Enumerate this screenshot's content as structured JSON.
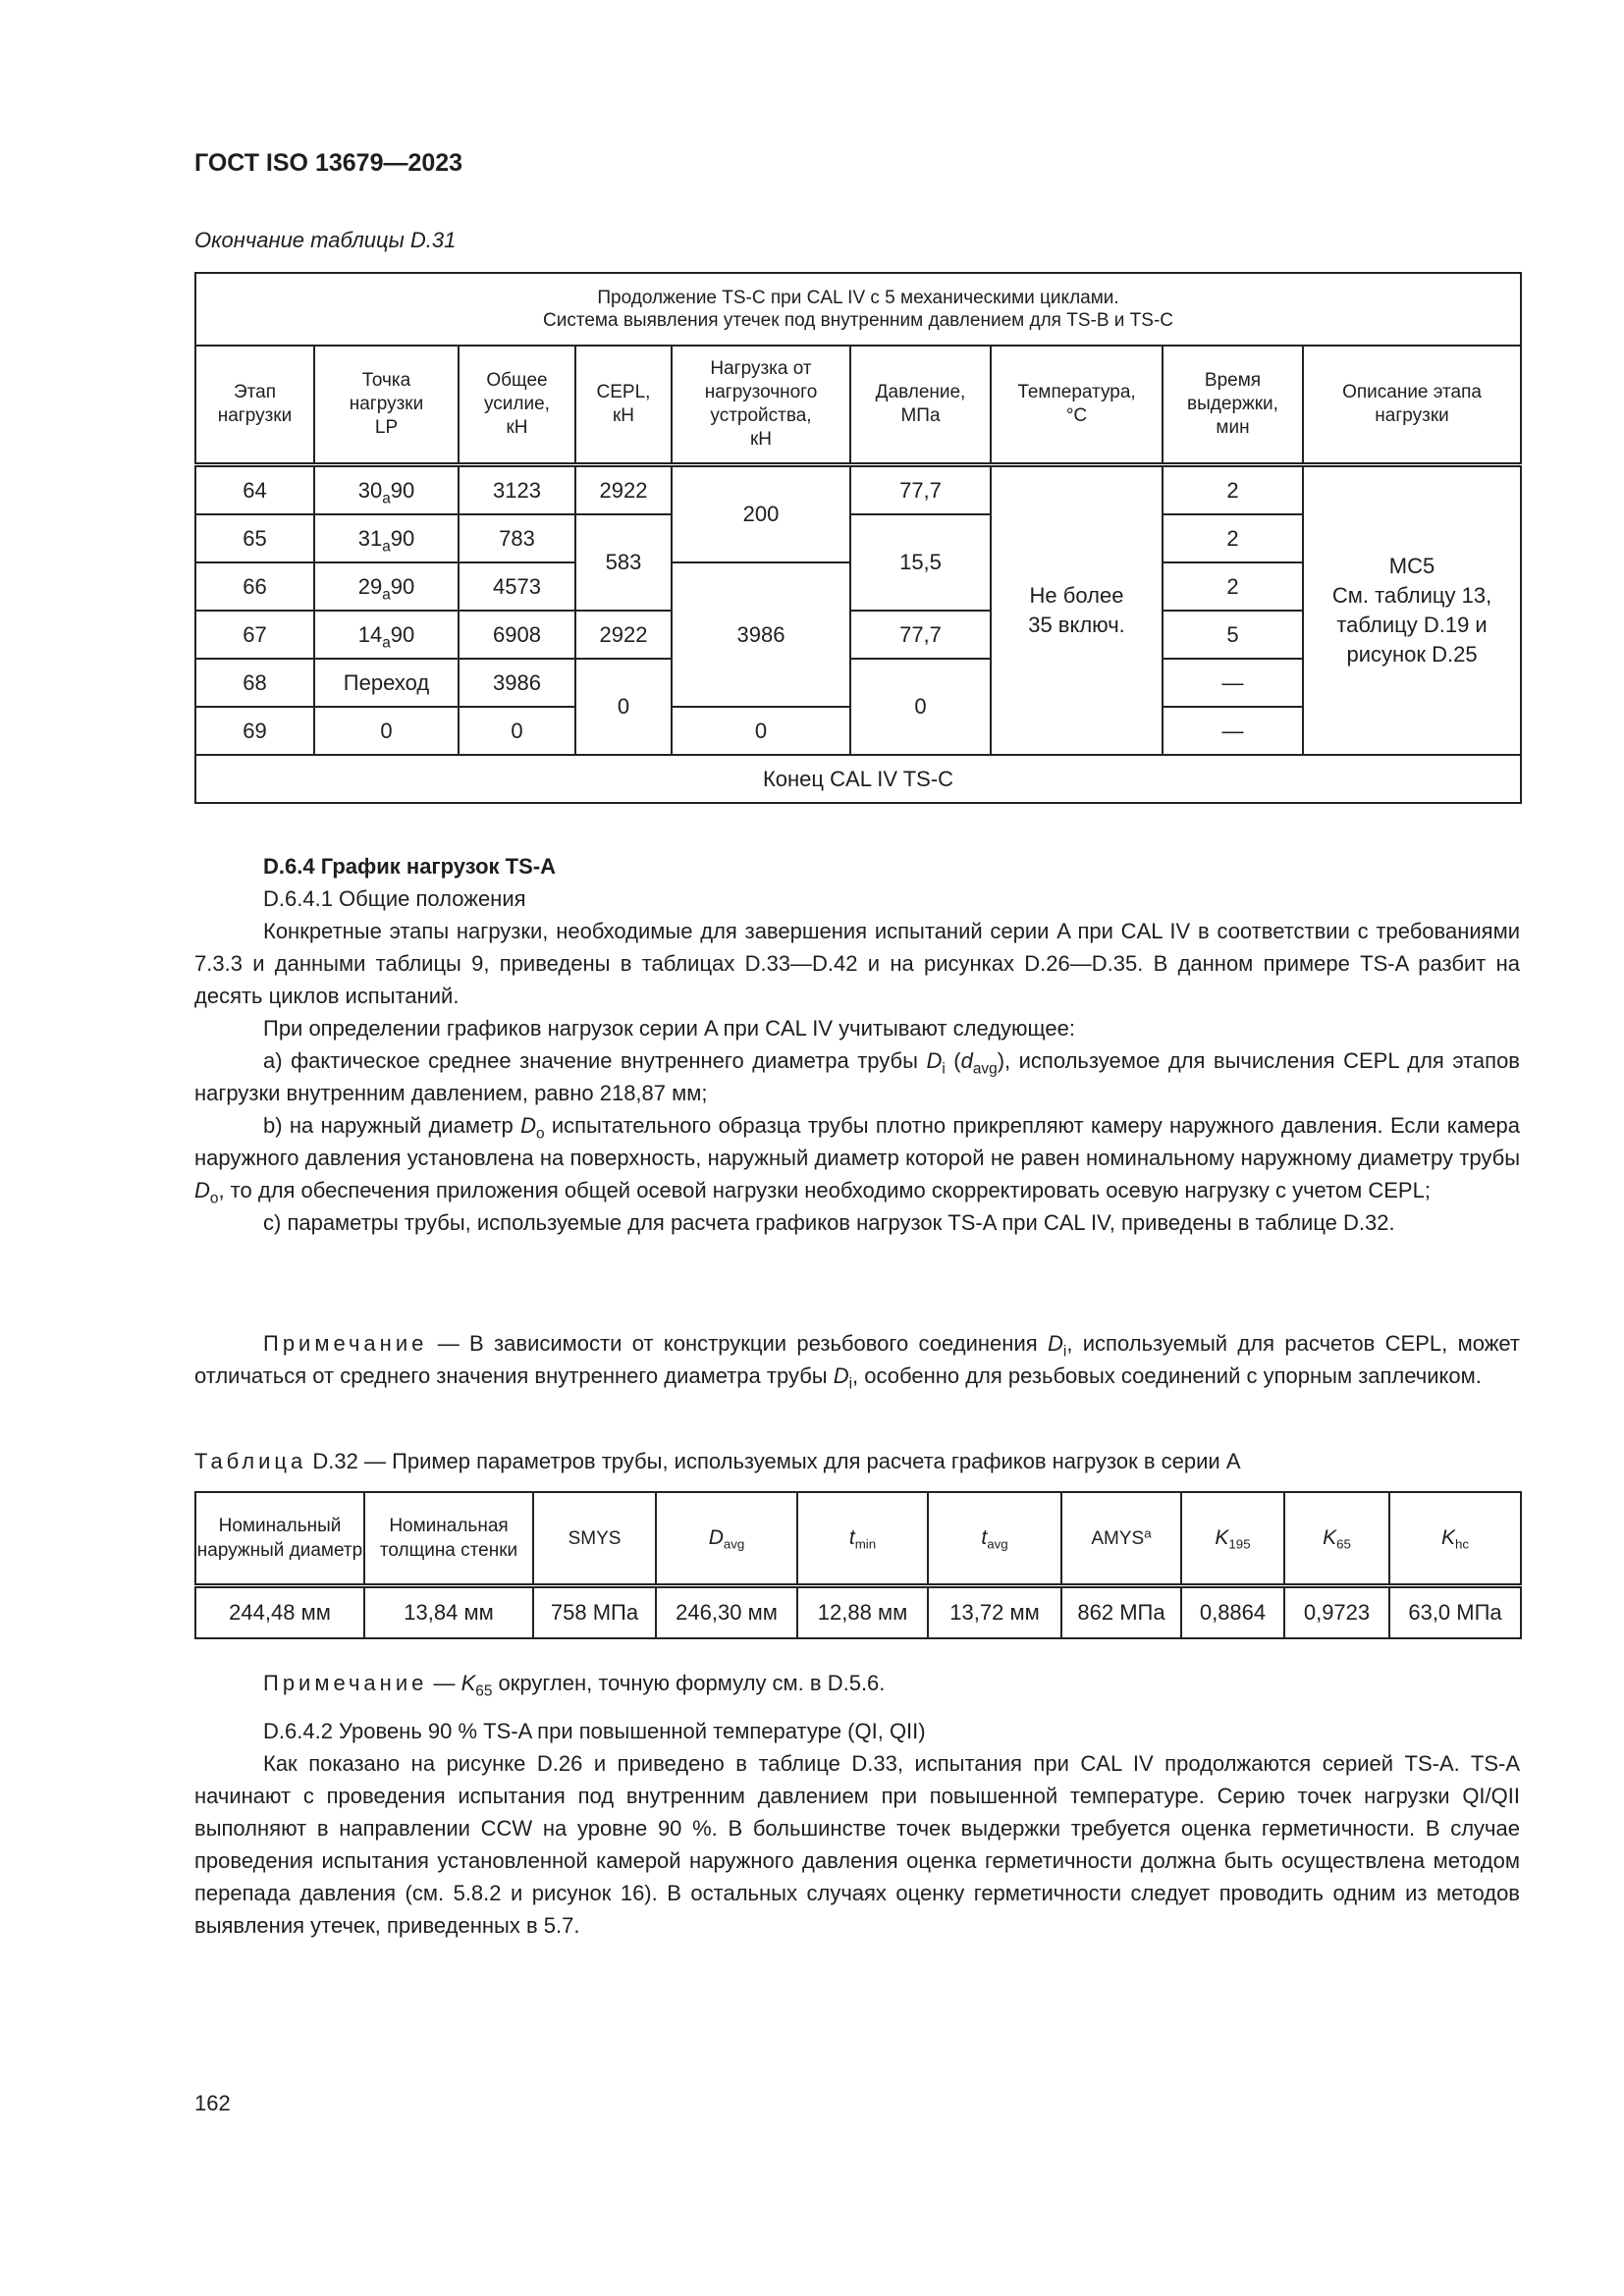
{
  "header": {
    "doc_id": "ГОСТ ISO 13679—2023",
    "continuation": "Окончание таблицы D.31"
  },
  "table1": {
    "title_lines": [
      "Продолжение TS-C при CAL IV с 5 механическими циклами.",
      "Система выявления утечек под внутренним давлением для TS-B и TS-C"
    ],
    "columns": [
      [
        "Этап",
        "нагрузки"
      ],
      [
        "Точка",
        "нагрузки",
        "LP"
      ],
      [
        "Общее",
        "усилие,",
        "кН"
      ],
      [
        "CEPL,",
        "кН"
      ],
      [
        "Нагрузка от",
        "нагрузочного",
        "устройства,",
        "кН"
      ],
      [
        "Давление,",
        "МПа"
      ],
      [
        "Температура,",
        "°C"
      ],
      [
        "Время",
        "выдержки,",
        "мин"
      ],
      [
        "Описание этапа",
        "нагрузки"
      ]
    ],
    "rows": [
      {
        "stage": "64",
        "lp": {
          "pre": "30",
          "sub": "a",
          "post": "90"
        },
        "force": "3123",
        "cepl": "2922",
        "device": "200",
        "pressure": "77,7",
        "temperature": "Не более 35 включ.",
        "hold": "2",
        "description": [
          "MC5",
          "См. таблицу 13,",
          "таблицу D.19 и",
          "рисунок D.25"
        ]
      },
      {
        "stage": "65",
        "lp": {
          "pre": "31",
          "sub": "a",
          "post": "90"
        },
        "force": "783",
        "cepl": "583",
        "pressure": "15,5",
        "hold": "2"
      },
      {
        "stage": "66",
        "lp": {
          "pre": "29",
          "sub": "a",
          "post": "90"
        },
        "force": "4573",
        "device": "3986",
        "hold": "2"
      },
      {
        "stage": "67",
        "lp": {
          "pre": "14",
          "sub": "a",
          "post": "90"
        },
        "force": "6908",
        "cepl": "2922",
        "pressure": "77,7",
        "hold": "5"
      },
      {
        "stage": "68",
        "lp": {
          "pre": "Переход"
        },
        "force": "3986",
        "cepl": "0",
        "pressure": "0",
        "hold": "—"
      },
      {
        "stage": "69",
        "lp": {
          "pre": "0"
        },
        "force": "0",
        "device": "0",
        "hold": "—"
      }
    ],
    "footer": "Конец CAL IV TS-C"
  },
  "section1": [
    {
      "cls": "h",
      "seg": [
        {
          "t": "D.6.4 График нагрузок TS-A"
        }
      ]
    },
    {
      "seg": [
        {
          "t": "D.6.4.1 Общие положения"
        }
      ]
    },
    {
      "seg": [
        {
          "t": "Конкретные этапы нагрузки, необходимые для завершения испытаний серии A при CAL IV в соответствии с требованиями 7.3.3 и данными таблицы 9, приведены в таблицах D.33—D.42 и на рисунках D.26—D.35. В данном примере TS-A разбит на десять циклов испытаний."
        }
      ]
    },
    {
      "seg": [
        {
          "t": "При определении графиков нагрузок серии A при CAL IV учитывают следующее:"
        }
      ]
    },
    {
      "seg": [
        {
          "t": "а) фактическое среднее значение внутреннего диаметра трубы "
        },
        {
          "t": "D",
          "s": "i"
        },
        {
          "t": "i",
          "s": "sub"
        },
        {
          "t": " ("
        },
        {
          "t": "d",
          "s": "i"
        },
        {
          "t": "avg",
          "s": "sub"
        },
        {
          "t": "), используемое для вычисления CEPL для этапов нагрузки внутренним давлением, равно 218,87 мм;"
        }
      ]
    },
    {
      "seg": [
        {
          "t": "b) на наружный диаметр "
        },
        {
          "t": "D",
          "s": "i"
        },
        {
          "t": "o",
          "s": "sub"
        },
        {
          "t": " испытательного образца трубы плотно прикрепляют камеру наружного давления. Если камера наружного давления установлена на поверхность, наружный диаметр которой не равен номинальному наружному диаметру трубы "
        },
        {
          "t": "D",
          "s": "i"
        },
        {
          "t": "o",
          "s": "sub"
        },
        {
          "t": ", то для обеспечения приложения общей осевой нагрузки необходимо скорректировать осевую нагрузку с учетом CEPL;"
        }
      ]
    },
    {
      "seg": [
        {
          "t": "c) параметры трубы, используемые для расчета графиков нагрузок TS-A при CAL IV, приведены в таблице D.32."
        }
      ]
    }
  ],
  "note1": [
    {
      "t": "Примечание",
      "s": "sp"
    },
    {
      "t": " — В зависимости от конструкции резьбового соединения "
    },
    {
      "t": "D",
      "s": "i"
    },
    {
      "t": "i",
      "s": "sub"
    },
    {
      "t": ", используемый для расчетов CEPL, может отличаться от среднего значения внутреннего диаметра трубы "
    },
    {
      "t": "D",
      "s": "i"
    },
    {
      "t": "i",
      "s": "sub"
    },
    {
      "t": ", особенно для резьбовых соединений с упорным заплечиком."
    }
  ],
  "table2": {
    "caption": [
      {
        "t": "Таблица",
        "s": "sp"
      },
      {
        "t": " D.32 — Пример параметров трубы, используемых для расчета графиков нагрузок в серии A"
      }
    ],
    "columns": [
      [
        {
          "t": "Номинальный наружный диаметр"
        }
      ],
      [
        {
          "t": "Номинальная толщина стенки"
        }
      ],
      [
        {
          "t": "SMYS"
        }
      ],
      [
        {
          "t": "D",
          "s": "i"
        },
        {
          "t": "avg",
          "s": "sub"
        }
      ],
      [
        {
          "t": "t",
          "s": "i"
        },
        {
          "t": "min",
          "s": "sub"
        }
      ],
      [
        {
          "t": "t",
          "s": "i"
        },
        {
          "t": "avg",
          "s": "sub"
        }
      ],
      [
        {
          "t": "AMYS"
        },
        {
          "t": "a",
          "s": "sup"
        }
      ],
      [
        {
          "t": "K",
          "s": "i"
        },
        {
          "t": "195",
          "s": "sub"
        }
      ],
      [
        {
          "t": "K",
          "s": "i"
        },
        {
          "t": "65",
          "s": "sub"
        }
      ],
      [
        {
          "t": "K",
          "s": "i"
        },
        {
          "t": "hc",
          "s": "sub"
        }
      ]
    ],
    "values": [
      "244,48 мм",
      "13,84 мм",
      "758 МПа",
      "246,30 мм",
      "12,88 мм",
      "13,72 мм",
      "862 МПа",
      "0,8864",
      "0,9723",
      "63,0 МПа"
    ]
  },
  "note2": [
    {
      "t": "Примечание",
      "s": "sp"
    },
    {
      "t": " — "
    },
    {
      "t": "K",
      "s": "i"
    },
    {
      "t": "65",
      "s": "sub"
    },
    {
      "t": " округлен, точную формулу см. в D.5.6."
    }
  ],
  "section2": [
    {
      "seg": [
        {
          "t": "D.6.4.2 Уровень 90 % TS-A при повышенной температуре (QI, QII)"
        }
      ]
    },
    {
      "seg": [
        {
          "t": "Как показано на рисунке D.26 и приведено в таблице D.33, испытания при CAL IV продолжаются серией TS-A. TS-A начинают с проведения испытания под внутренним давлением при повышенной температуре. Серию точек нагрузки QI/QII выполняют в направлении CCW на уровне 90 %. В большинстве точек выдержки требуется оценка герметичности. В случае проведения испытания установленной камерой наружного давления оценка герметичности должна быть осуществлена методом перепада давления (см. 5.8.2 и рисунок 16). В остальных случаях оценку герметичности следует проводить одним из методов выявления утечек, приведенных в 5.7."
        }
      ]
    }
  ],
  "page_number": "162"
}
